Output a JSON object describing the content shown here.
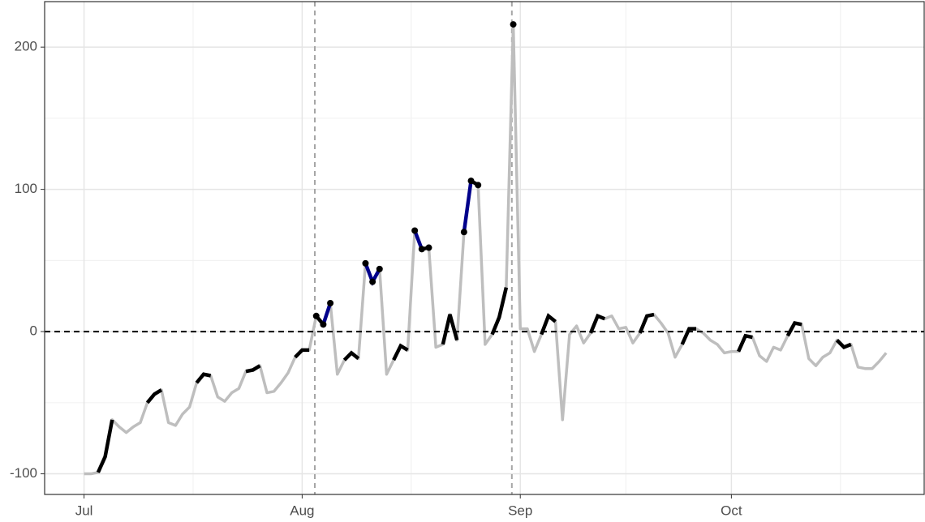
{
  "chart_data": {
    "type": "line",
    "x": [
      0,
      1,
      2,
      3,
      4,
      5,
      6,
      7,
      8,
      9,
      10,
      11,
      12,
      13,
      14,
      15,
      16,
      17,
      18,
      19,
      20,
      21,
      22,
      23,
      24,
      25,
      26,
      27,
      28,
      29,
      30,
      31,
      32,
      33,
      34,
      35,
      36,
      37,
      38,
      39,
      40,
      41,
      42,
      43,
      44,
      45,
      46,
      47,
      48,
      49,
      50,
      51,
      52,
      53,
      54,
      55,
      56,
      57,
      58,
      59,
      60,
      61,
      62,
      63,
      64,
      65,
      66,
      67,
      68,
      69,
      70,
      71,
      72,
      73,
      74,
      75,
      76,
      77,
      78,
      79,
      80,
      81,
      82,
      83,
      84,
      85,
      86,
      87,
      88,
      89,
      90,
      91,
      92,
      93,
      94,
      95,
      96,
      97,
      98,
      99,
      100,
      101,
      102,
      103,
      104,
      105,
      106,
      107,
      108,
      109,
      110,
      111,
      112,
      113,
      114
    ],
    "series": [
      {
        "color": "#bebebe",
        "values": [
          -100,
          -100,
          -99,
          -88,
          -62,
          -67,
          -71,
          -67,
          -64,
          -50,
          -44,
          -41,
          -64,
          -66,
          -58,
          -53,
          -36,
          -30,
          -31,
          -46,
          -49,
          -43,
          -40,
          -28,
          -27,
          -24,
          -43,
          -42,
          -36,
          -29,
          -18,
          -13,
          -13,
          11,
          5,
          20,
          -30,
          -20,
          -15,
          -19,
          48,
          35,
          44,
          -30,
          -20,
          -10,
          -13,
          71,
          58,
          59,
          -11,
          -9,
          12,
          -6,
          70,
          106,
          103,
          -9,
          -2,
          10,
          31,
          216,
          2,
          2,
          -14,
          -2,
          11,
          7,
          -62,
          -2,
          4,
          -8,
          -1,
          11,
          9,
          11,
          2,
          3,
          -8,
          -1,
          11,
          12,
          6,
          -1,
          -18,
          -9,
          2,
          2,
          -1,
          -6,
          -9,
          -15,
          -14,
          -14,
          -3,
          -4,
          -17,
          -21,
          -11,
          -13,
          -3,
          6,
          5,
          -19,
          -24,
          -18,
          -15,
          -6,
          -11,
          -9,
          -25,
          -26,
          -26,
          -21,
          -15
        ]
      }
    ],
    "highlights": [
      {
        "x": [
          2,
          4
        ],
        "color": "#000000"
      },
      {
        "x": [
          9,
          11
        ],
        "color": "#000000"
      },
      {
        "x": [
          16,
          18
        ],
        "color": "#000000"
      },
      {
        "x": [
          23,
          25
        ],
        "color": "#000000"
      },
      {
        "x": [
          30,
          32
        ],
        "color": "#000000"
      },
      {
        "x": [
          33,
          34
        ],
        "color": "#000000"
      },
      {
        "x": [
          34,
          35
        ],
        "color": "#00008b"
      },
      {
        "x": [
          37,
          39
        ],
        "color": "#000000"
      },
      {
        "x": [
          40,
          42
        ],
        "color": "#00008b"
      },
      {
        "x": [
          44,
          46
        ],
        "color": "#000000"
      },
      {
        "x": [
          47,
          48
        ],
        "color": "#00008b"
      },
      {
        "x": [
          48,
          49
        ],
        "color": "#000000"
      },
      {
        "x": [
          51,
          53
        ],
        "color": "#000000"
      },
      {
        "x": [
          54,
          55
        ],
        "color": "#00008b"
      },
      {
        "x": [
          55,
          56
        ],
        "color": "#000000"
      },
      {
        "x": [
          58,
          60
        ],
        "color": "#000000"
      },
      {
        "x": [
          65,
          67
        ],
        "color": "#000000"
      },
      {
        "x": [
          72,
          74
        ],
        "color": "#000000"
      },
      {
        "x": [
          79,
          81
        ],
        "color": "#000000"
      },
      {
        "x": [
          85,
          87
        ],
        "color": "#000000"
      },
      {
        "x": [
          93,
          95
        ],
        "color": "#000000"
      },
      {
        "x": [
          100,
          102
        ],
        "color": "#000000"
      },
      {
        "x": [
          107,
          109
        ],
        "color": "#000000"
      }
    ],
    "points": {
      "x": [
        33,
        34,
        35,
        40,
        41,
        42,
        47,
        48,
        49,
        54,
        55,
        56,
        61
      ],
      "color": "#000000"
    },
    "vlines": [
      32.8,
      60.8
    ],
    "hline": 0,
    "xlim": [
      -5.6,
      119.4
    ],
    "ylim": [
      -114.5,
      232
    ],
    "xticks": [
      {
        "value": 0,
        "label": "Jul"
      },
      {
        "value": 31,
        "label": "Aug"
      },
      {
        "value": 62,
        "label": "Sep"
      },
      {
        "value": 92,
        "label": "Oct"
      }
    ],
    "xminor": [
      15.5,
      46.5,
      77,
      107.5
    ],
    "yticks": [
      -100,
      0,
      100,
      200
    ],
    "yminor": [
      -50,
      50,
      150
    ],
    "grid": true
  }
}
